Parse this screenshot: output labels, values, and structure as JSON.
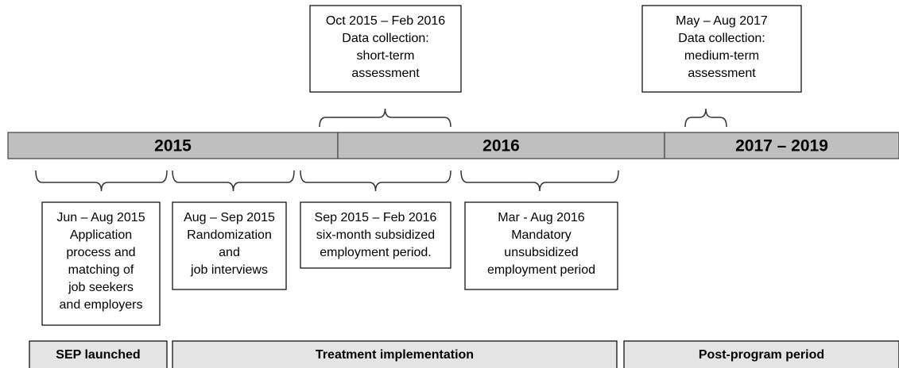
{
  "top_boxes": [
    {
      "lines": [
        "Oct 2015 – Feb 2016",
        "Data collection:",
        "short-term",
        "assessment"
      ]
    },
    {
      "lines": [
        "May – Aug 2017",
        "Data collection:",
        "medium-term",
        "assessment"
      ]
    }
  ],
  "bar_segments": [
    "2015",
    "2016",
    "2017 – 2019"
  ],
  "bottom_boxes": [
    {
      "lines": [
        "Jun – Aug 2015",
        "Application",
        "process and",
        "matching of",
        "job seekers",
        "and employers"
      ]
    },
    {
      "lines": [
        "Aug – Sep 2015",
        "Randomization",
        "and",
        "job interviews"
      ]
    },
    {
      "lines": [
        "Sep 2015 – Feb 2016",
        "six-month subsidized",
        "employment period."
      ]
    },
    {
      "lines": [
        "Mar - Aug 2016",
        "Mandatory",
        "unsubsidized",
        "employment period"
      ]
    }
  ],
  "phases": [
    "SEP launched",
    "Treatment implementation",
    "Post-program period"
  ]
}
